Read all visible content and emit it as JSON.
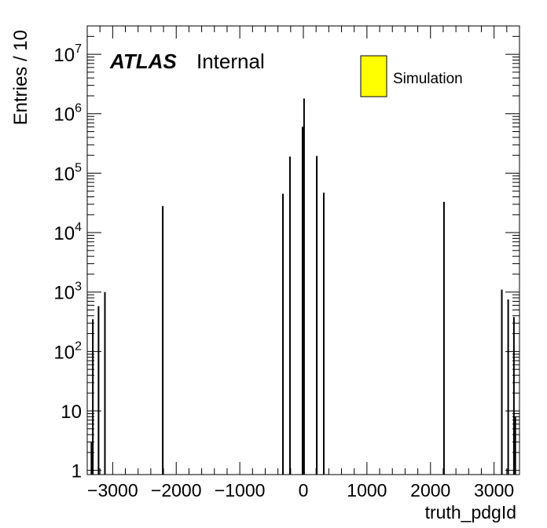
{
  "chart_data": {
    "type": "bar",
    "xlabel": "truth_pdgId",
    "ylabel": "Entries / 10",
    "xlim": [
      -3400,
      3400
    ],
    "ylim": [
      0.85,
      30000000
    ],
    "yscale": "log",
    "x_ticks": [
      -3000,
      -2000,
      -1000,
      0,
      1000,
      2000,
      3000
    ],
    "x_tick_labels": [
      "−3000",
      "−2000",
      "−1000",
      "0",
      "1000",
      "2000",
      "3000"
    ],
    "y_ticks": [
      {
        "value": 1,
        "base": "1",
        "exp": ""
      },
      {
        "value": 10,
        "base": "10",
        "exp": ""
      },
      {
        "value": 100,
        "base": "10",
        "exp": "2"
      },
      {
        "value": 1000,
        "base": "10",
        "exp": "3"
      },
      {
        "value": 10000,
        "base": "10",
        "exp": "4"
      },
      {
        "value": 100000,
        "base": "10",
        "exp": "5"
      },
      {
        "value": 1000000,
        "base": "10",
        "exp": "6"
      },
      {
        "value": 10000000,
        "base": "10",
        "exp": "7"
      }
    ],
    "bars": [
      {
        "x": -3334,
        "y": 3
      },
      {
        "x": -3312,
        "y": 350
      },
      {
        "x": -3222,
        "y": 580
      },
      {
        "x": -3122,
        "y": 1000
      },
      {
        "x": -2212,
        "y": 28000
      },
      {
        "x": -321,
        "y": 45000
      },
      {
        "x": -211,
        "y": 190000
      },
      {
        "x": -13,
        "y": 600000
      },
      {
        "x": 11,
        "y": 1800000
      },
      {
        "x": 211,
        "y": 195000
      },
      {
        "x": 321,
        "y": 47000
      },
      {
        "x": 2212,
        "y": 33000
      },
      {
        "x": 3122,
        "y": 1100
      },
      {
        "x": 3222,
        "y": 750
      },
      {
        "x": 3312,
        "y": 380
      },
      {
        "x": 3334,
        "y": 8
      }
    ],
    "grid": false,
    "legend": {
      "position": "top-right",
      "entries": [
        {
          "label": "Simulation",
          "color": "#ffff00"
        }
      ]
    },
    "annotation": {
      "bold": "ATLAS",
      "normal": "Internal"
    }
  }
}
